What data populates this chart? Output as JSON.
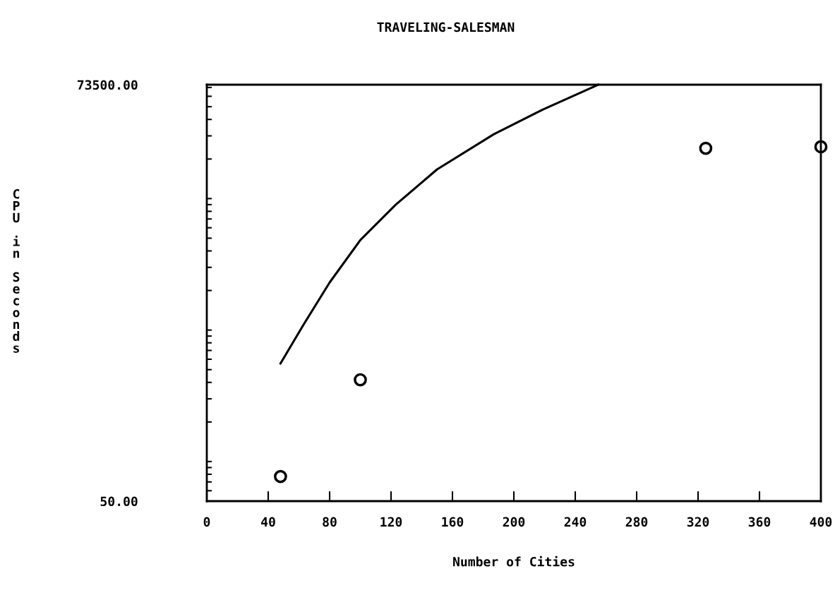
{
  "chart_data": {
    "type": "scatter",
    "title": "TRAVELING-SALESMAN",
    "xlabel": "Number of Cities",
    "ylabel": "CPU in Seconds",
    "log": "y",
    "grid": false,
    "xlim": [
      0,
      400
    ],
    "xticks": [
      0,
      40,
      80,
      120,
      160,
      200,
      240,
      280,
      320,
      360,
      400
    ],
    "ylim": [
      50,
      73500
    ],
    "yticks": [
      {
        "value": 50,
        "label": "50.00"
      },
      {
        "value": 73500,
        "label": "73500.00"
      }
    ],
    "series": [
      {
        "type": "line",
        "color": "#000000",
        "marker": "none",
        "line_style": "solid",
        "x": [
          48,
          63,
          80,
          100,
          123,
          150,
          187,
          219,
          255
        ],
        "values": [
          557,
          1100,
          2300,
          4840,
          8980,
          16670,
          30900,
          47640,
          73500
        ]
      },
      {
        "color": "#000000",
        "marker": "circle",
        "x": [
          48,
          100,
          325,
          400
        ],
        "values": [
          77,
          419,
          24150,
          24770
        ]
      }
    ]
  }
}
